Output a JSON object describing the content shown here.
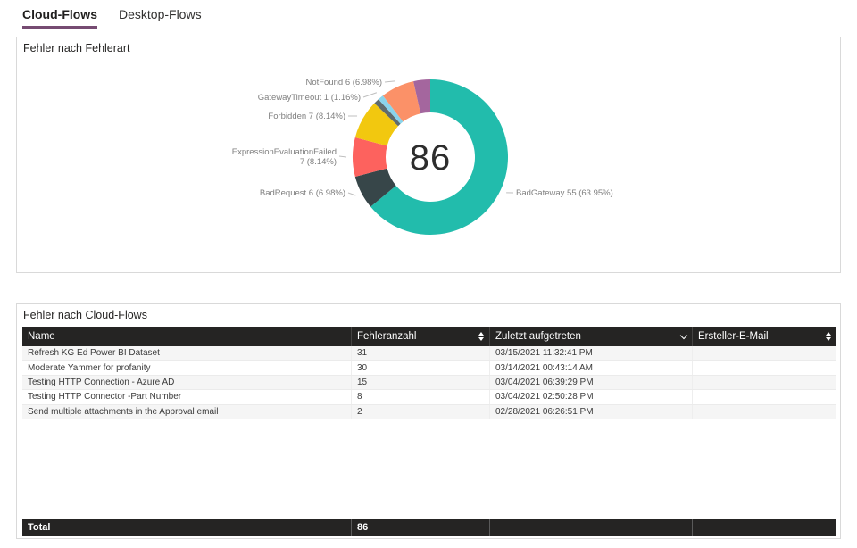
{
  "accent": {
    "tab_underline": "#764b72",
    "table_header_bg": "#252423",
    "card_border": "#d9d9d9"
  },
  "tabs": [
    {
      "label": "Cloud-Flows",
      "active": true
    },
    {
      "label": "Desktop-Flows",
      "active": false
    }
  ],
  "donut_card": {
    "title": "Fehler nach Fehlerart",
    "center_total": "86"
  },
  "chart_data": {
    "type": "pie",
    "subtype": "donut",
    "title": "Fehler nach Fehlerart",
    "center_label": "86",
    "total": 86,
    "legend_position": "none",
    "slices": [
      {
        "name": "BadGateway",
        "value": 55,
        "pct": "63.95%",
        "color": "#22bcac",
        "label_shown": true
      },
      {
        "name": "BadRequest",
        "value": 6,
        "pct": "6.98%",
        "color": "#374649",
        "label_shown": true
      },
      {
        "name": "ExpressionEvaluationFailed",
        "value": 7,
        "pct": "8.14%",
        "color": "#fd625e",
        "label_shown": true
      },
      {
        "name": "Forbidden",
        "value": 7,
        "pct": "8.14%",
        "color": "#f2c80f",
        "label_shown": true
      },
      {
        "name": "",
        "value": 1,
        "pct": "1.16%",
        "color": "#5f6b6d",
        "label_shown": false
      },
      {
        "name": "GatewayTimeout",
        "value": 1,
        "pct": "1.16%",
        "color": "#8ad4eb",
        "label_shown": true
      },
      {
        "name": "NotFound",
        "value": 6,
        "pct": "6.98%",
        "color": "#fb9168",
        "label_shown": true
      },
      {
        "name": "",
        "value": 3,
        "pct": "3.49%",
        "color": "#a4669e",
        "label_shown": false
      }
    ]
  },
  "table_card": {
    "title": "Fehler nach Cloud-Flows",
    "columns": [
      {
        "label": "Name",
        "sort": "none",
        "icon": null
      },
      {
        "label": "Fehleranzahl",
        "sort": "both",
        "icon": "sort-updown-icon"
      },
      {
        "label": "Zuletzt aufgetreten",
        "sort": "desc",
        "icon": "chevron-down-icon"
      },
      {
        "label": "Ersteller-E-Mail",
        "sort": "both",
        "icon": "sort-updown-icon"
      }
    ],
    "rows": [
      {
        "name": "Refresh KG Ed Power BI Dataset",
        "count": "31",
        "last": "03/15/2021 11:32:41 PM",
        "email": ""
      },
      {
        "name": "Moderate Yammer for profanity",
        "count": "30",
        "last": "03/14/2021 00:43:14 AM",
        "email": ""
      },
      {
        "name": "Testing HTTP Connection - Azure AD",
        "count": "15",
        "last": "03/04/2021 06:39:29 PM",
        "email": ""
      },
      {
        "name": "Testing HTTP Connector -Part Number",
        "count": "8",
        "last": "03/04/2021 02:50:28 PM",
        "email": ""
      },
      {
        "name": "Send multiple attachments in the Approval email",
        "count": "2",
        "last": "02/28/2021 06:26:51 PM",
        "email": ""
      }
    ],
    "total": {
      "label": "Total",
      "count": "86"
    }
  }
}
